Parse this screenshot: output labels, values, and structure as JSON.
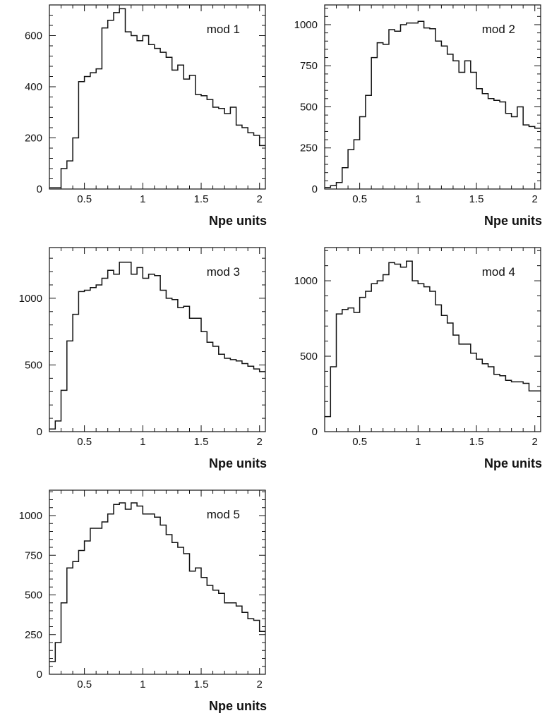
{
  "chart_data": [
    {
      "type": "histogram",
      "label": "mod 1",
      "xlabel": "Npe units",
      "xlim": [
        0.2,
        2.05
      ],
      "ylim": [
        0,
        720
      ],
      "xticks": [
        "0.5",
        "1",
        "1.5",
        "2"
      ],
      "xtick_values": [
        0.5,
        1,
        1.5,
        2
      ],
      "yticks": [
        "0",
        "200",
        "400",
        "600"
      ],
      "ytick_values": [
        0,
        200,
        400,
        600
      ],
      "bin_width": 0.05,
      "bin_start": 0.2,
      "values": [
        5,
        5,
        80,
        110,
        200,
        420,
        440,
        455,
        470,
        630,
        660,
        690,
        705,
        615,
        600,
        580,
        600,
        565,
        550,
        535,
        515,
        465,
        485,
        430,
        445,
        370,
        365,
        350,
        320,
        315,
        295,
        320,
        250,
        240,
        220,
        210,
        170
      ]
    },
    {
      "type": "histogram",
      "label": "mod 2",
      "xlabel": "Npe units",
      "xlim": [
        0.2,
        2.05
      ],
      "ylim": [
        0,
        1120
      ],
      "xticks": [
        "0.5",
        "1",
        "1.5",
        "2"
      ],
      "xtick_values": [
        0.5,
        1,
        1.5,
        2
      ],
      "yticks": [
        "0",
        "250",
        "500",
        "750",
        "1000"
      ],
      "ytick_values": [
        0,
        250,
        500,
        750,
        1000
      ],
      "bin_width": 0.05,
      "bin_start": 0.2,
      "values": [
        10,
        20,
        40,
        130,
        240,
        300,
        440,
        570,
        800,
        890,
        880,
        970,
        960,
        1000,
        1010,
        1010,
        1020,
        980,
        975,
        900,
        870,
        820,
        780,
        710,
        780,
        710,
        610,
        580,
        550,
        540,
        530,
        460,
        440,
        500,
        390,
        380,
        370
      ]
    },
    {
      "type": "histogram",
      "label": "mod 3",
      "xlabel": "Npe units",
      "xlim": [
        0.2,
        2.05
      ],
      "ylim": [
        0,
        1380
      ],
      "xticks": [
        "0.5",
        "1",
        "1.5",
        "2"
      ],
      "xtick_values": [
        0.5,
        1,
        1.5,
        2
      ],
      "yticks": [
        "0",
        "500",
        "1000"
      ],
      "ytick_values": [
        0,
        500,
        1000
      ],
      "bin_width": 0.05,
      "bin_start": 0.2,
      "values": [
        20,
        80,
        310,
        680,
        880,
        1050,
        1060,
        1080,
        1100,
        1150,
        1210,
        1180,
        1270,
        1270,
        1180,
        1230,
        1150,
        1180,
        1170,
        1060,
        1000,
        990,
        930,
        940,
        850,
        850,
        750,
        670,
        640,
        580,
        550,
        540,
        530,
        510,
        490,
        470,
        450
      ]
    },
    {
      "type": "histogram",
      "label": "mod 4",
      "xlabel": "Npe units",
      "xlim": [
        0.2,
        2.05
      ],
      "ylim": [
        0,
        1220
      ],
      "xticks": [
        "0.5",
        "1",
        "1.5",
        "2"
      ],
      "xtick_values": [
        0.5,
        1,
        1.5,
        2
      ],
      "yticks": [
        "0",
        "500",
        "1000"
      ],
      "ytick_values": [
        0,
        500,
        1000
      ],
      "bin_width": 0.05,
      "bin_start": 0.2,
      "values": [
        100,
        430,
        780,
        810,
        820,
        790,
        890,
        930,
        980,
        1000,
        1040,
        1120,
        1110,
        1090,
        1130,
        1000,
        980,
        960,
        930,
        840,
        770,
        720,
        640,
        580,
        580,
        520,
        480,
        450,
        430,
        380,
        370,
        340,
        330,
        330,
        320,
        270,
        270
      ]
    },
    {
      "type": "histogram",
      "label": "mod 5",
      "xlabel": "Npe units",
      "xlim": [
        0.2,
        2.05
      ],
      "ylim": [
        0,
        1160
      ],
      "xticks": [
        "0.5",
        "1",
        "1.5",
        "2"
      ],
      "xtick_values": [
        0.5,
        1,
        1.5,
        2
      ],
      "yticks": [
        "0",
        "250",
        "500",
        "750",
        "1000"
      ],
      "ytick_values": [
        0,
        250,
        500,
        750,
        1000
      ],
      "bin_width": 0.05,
      "bin_start": 0.2,
      "values": [
        80,
        200,
        450,
        670,
        710,
        780,
        840,
        920,
        920,
        960,
        1010,
        1070,
        1080,
        1040,
        1080,
        1060,
        1010,
        1010,
        990,
        940,
        880,
        830,
        800,
        760,
        650,
        670,
        610,
        560,
        530,
        510,
        450,
        450,
        430,
        390,
        350,
        340,
        270
      ]
    }
  ]
}
